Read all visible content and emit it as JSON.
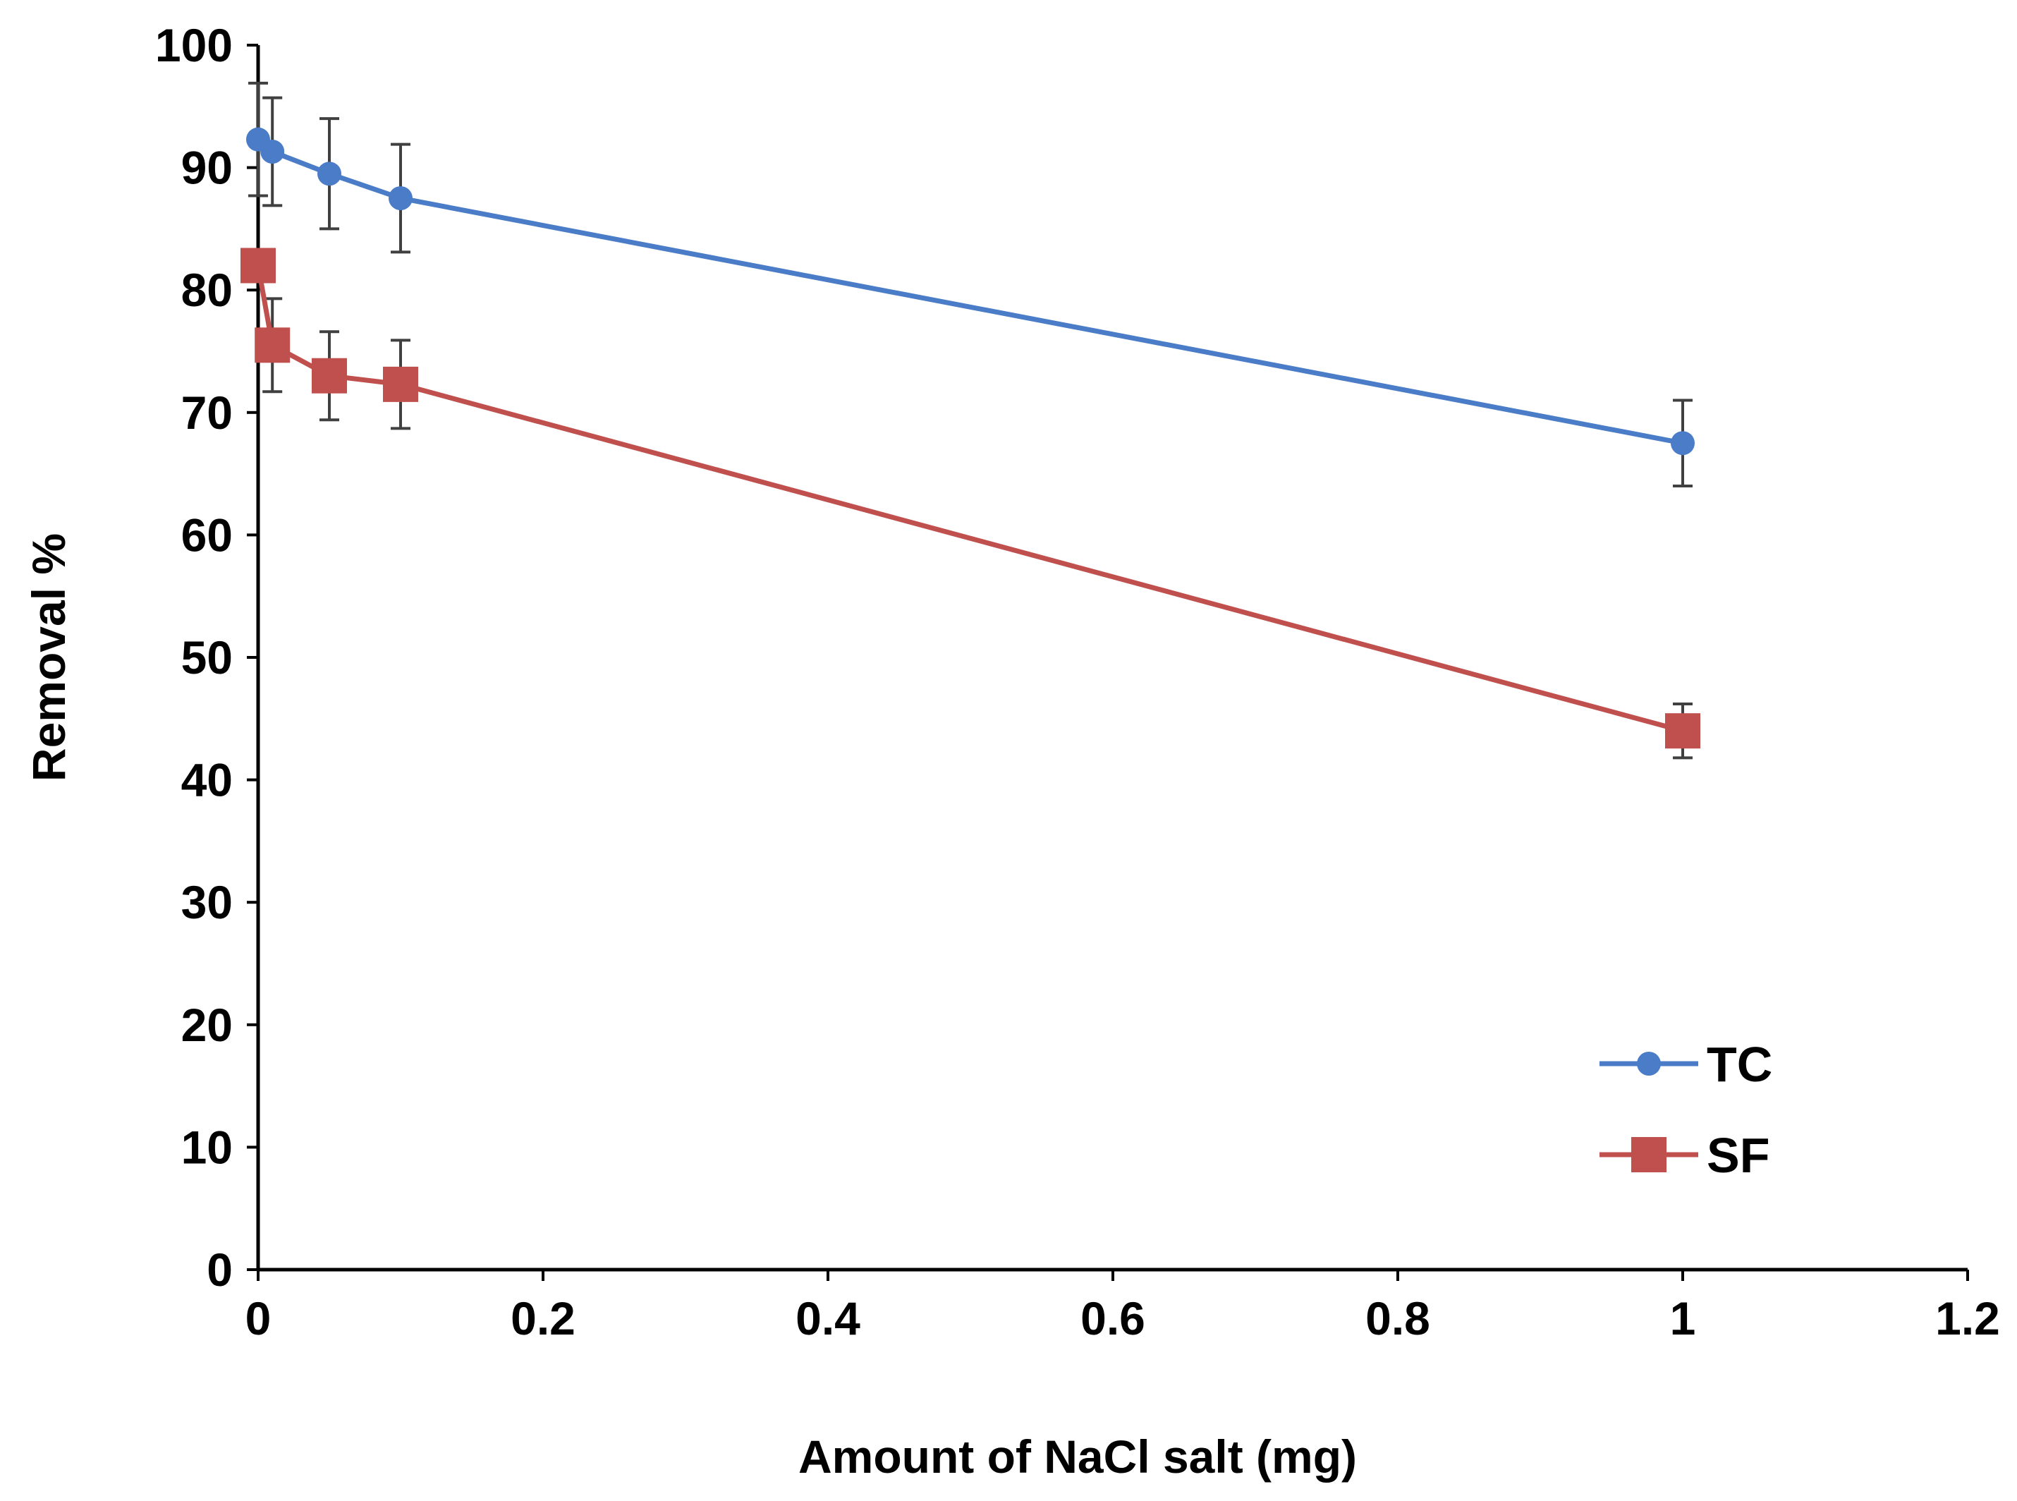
{
  "chart_data": {
    "type": "line",
    "xlabel": "Amount of  NaCl salt (mg)",
    "ylabel": "Removal %",
    "xlim": [
      0,
      1.2
    ],
    "ylim": [
      0,
      100
    ],
    "x_ticks": [
      "0",
      "0.2",
      "0.4",
      "0.6",
      "0.8",
      "1",
      "1.2"
    ],
    "y_ticks": [
      "0",
      "10",
      "20",
      "30",
      "40",
      "50",
      "60",
      "70",
      "80",
      "90",
      "100"
    ],
    "grid": false,
    "legend_position": "bottom-right",
    "series": [
      {
        "name": "TC",
        "color": "#4a7cc7",
        "marker": "circle",
        "x": [
          0,
          0.01,
          0.05,
          0.1,
          1
        ],
        "values": [
          92.3,
          91.3,
          89.5,
          87.5,
          67.5
        ],
        "error": [
          4.6,
          4.4,
          4.5,
          4.4,
          3.5
        ]
      },
      {
        "name": "SF",
        "color": "#c0504d",
        "marker": "square",
        "x": [
          0,
          0.01,
          0.05,
          0.1,
          1
        ],
        "values": [
          82,
          75.5,
          73,
          72.3,
          44
        ],
        "error": [
          0,
          3.8,
          3.6,
          3.6,
          2.2
        ]
      }
    ]
  }
}
